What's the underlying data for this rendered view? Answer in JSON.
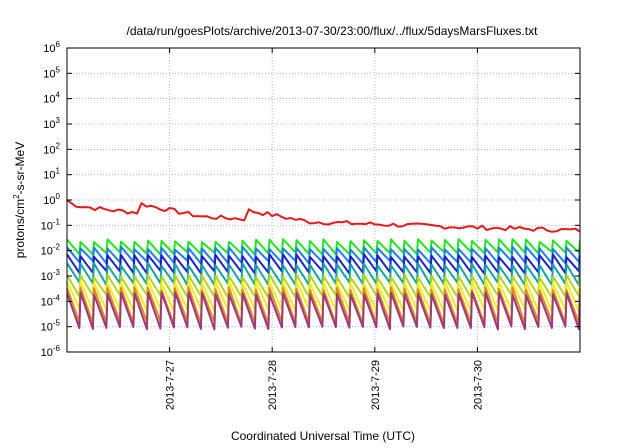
{
  "chart_data": {
    "type": "line",
    "title": "/data/run/goesPlots/archive/2013-07-30/23:00/flux/../flux/5daysMarsFluxes.txt",
    "xlabel": "Coordinated Universal Time (UTC)",
    "ylabel": {
      "prefix": "protons/cm",
      "sup": "2",
      "suffix": "-s-sr-MeV"
    },
    "x_range_days": [
      0,
      5
    ],
    "x_ticks": [
      {
        "label": "2013-7-27",
        "day": 1.0
      },
      {
        "label": "2013-7-28",
        "day": 2.0
      },
      {
        "label": "2013-7-29",
        "day": 3.0
      },
      {
        "label": "2013-7-30",
        "day": 4.0
      }
    ],
    "y_scale": "log",
    "y_range_exp": [
      -6,
      6
    ],
    "y_ticks": [
      {
        "base": "10",
        "exp": "6"
      },
      {
        "base": "10",
        "exp": "5"
      },
      {
        "base": "10",
        "exp": "4"
      },
      {
        "base": "10",
        "exp": "3"
      },
      {
        "base": "10",
        "exp": "2"
      },
      {
        "base": "10",
        "exp": "1"
      },
      {
        "base": "10",
        "exp": "0"
      },
      {
        "base": "10",
        "exp": "-1"
      },
      {
        "base": "10",
        "exp": "-2"
      },
      {
        "base": "10",
        "exp": "-3"
      },
      {
        "base": "10",
        "exp": "-4"
      },
      {
        "base": "10",
        "exp": "-5"
      },
      {
        "base": "10",
        "exp": "-6"
      }
    ],
    "grid": true,
    "sawtooth_cycles": 38,
    "series": [
      {
        "color": "#e41a1c",
        "kind": "decay",
        "high_exp": 0.0,
        "low_exp": -1.2
      },
      {
        "color": "#22e522",
        "kind": "saw",
        "high_exp": -1.6,
        "low_exp": -2.1
      },
      {
        "color": "#1e7fe8",
        "kind": "saw",
        "high_exp": -1.9,
        "low_exp": -2.45
      },
      {
        "color": "#1d20c8",
        "kind": "saw",
        "high_exp": -2.2,
        "low_exp": -2.85
      },
      {
        "color": "#17a3a3",
        "kind": "saw",
        "high_exp": -2.55,
        "low_exp": -3.3
      },
      {
        "color": "#b2d41a",
        "kind": "saw",
        "high_exp": -3.0,
        "low_exp": -3.8
      },
      {
        "color": "#f2ec1c",
        "kind": "saw",
        "high_exp": -3.25,
        "low_exp": -4.35
      },
      {
        "color": "#e08a22",
        "kind": "saw",
        "high_exp": -3.5,
        "low_exp": -4.85
      },
      {
        "color": "#9b3a7c",
        "kind": "saw",
        "high_exp": -3.7,
        "low_exp": -5.05
      }
    ]
  }
}
